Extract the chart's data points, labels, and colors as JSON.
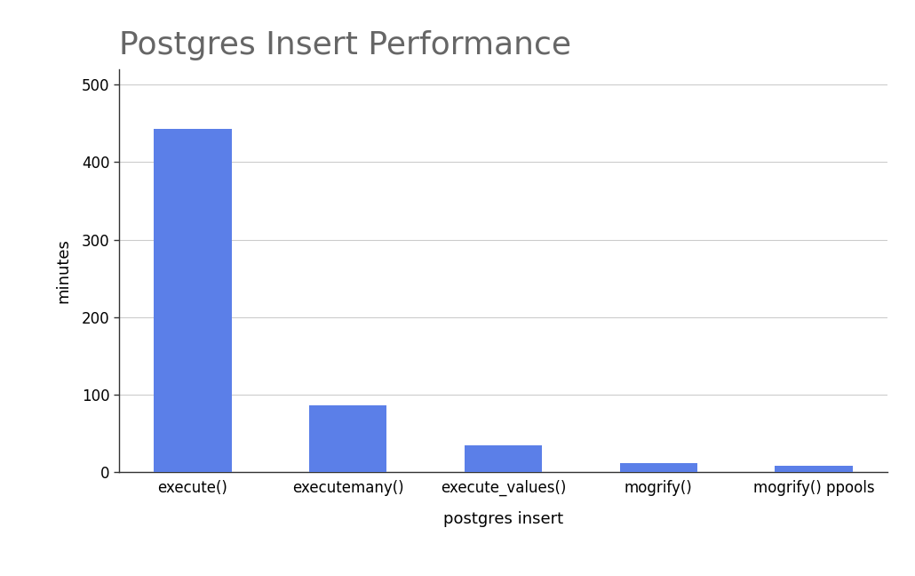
{
  "title": "Postgres Insert Performance",
  "categories": [
    "execute()",
    "executemany()",
    "execute_values()",
    "mogrify()",
    "mogrify() ppools"
  ],
  "values": [
    443,
    86,
    35,
    12,
    8
  ],
  "bar_color": "#5b7fe8",
  "xlabel": "postgres insert",
  "ylabel": "minutes",
  "ylim": [
    0,
    520
  ],
  "yticks": [
    0,
    100,
    200,
    300,
    400,
    500
  ],
  "title_fontsize": 26,
  "axis_label_fontsize": 13,
  "tick_fontsize": 12,
  "background_color": "#ffffff",
  "grid_color": "#cccccc",
  "spine_color": "#333333",
  "title_color": "#666666"
}
